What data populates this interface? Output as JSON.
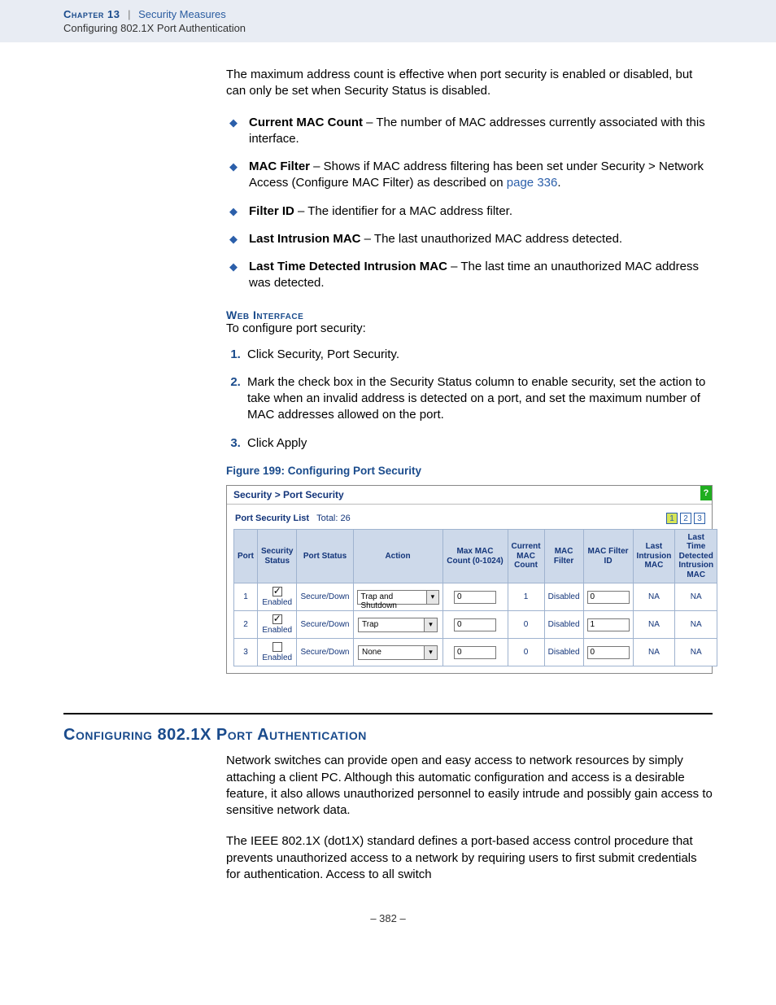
{
  "header": {
    "chapter_label": "Chapter 13",
    "separator": "|",
    "section": "Security Measures",
    "subsection": "Configuring 802.1X Port Authentication"
  },
  "intro_para": "The maximum address count is effective when port security is enabled or disabled, but can only be set when Security Status is disabled.",
  "bullets": [
    {
      "term": "Current MAC Count",
      "desc": " – The number of MAC addresses currently associated with this interface."
    },
    {
      "term": "MAC Filter",
      "desc": " – Shows if MAC address filtering has been set under Security > Network Access (Configure MAC Filter) as described on ",
      "link": "page 336",
      "after": "."
    },
    {
      "term": "Filter ID",
      "desc": " – The identifier for a MAC address filter."
    },
    {
      "term": "Last Intrusion MAC",
      "desc": " – The last unauthorized MAC address detected."
    },
    {
      "term": "Last Time Detected Intrusion MAC",
      "desc": " – The last time an unauthorized MAC address was detected."
    }
  ],
  "web_interface": {
    "heading": "Web Interface",
    "lead": "To configure port security:",
    "steps": [
      "Click Security, Port Security.",
      "Mark the check box in the Security Status column to enable security, set the action to take when an invalid address is detected on a port, and set the maximum number of MAC addresses allowed on the port.",
      "Click Apply"
    ]
  },
  "figure": {
    "caption": "Figure 199:  Configuring Port Security",
    "breadcrumb": "Security > Port Security",
    "list_title": "Port Security List",
    "total_label": "Total: 26",
    "pages": [
      "1",
      "2",
      "3"
    ],
    "active_page": "1",
    "table": {
      "columns": [
        "Port",
        "Security Status",
        "Port Status",
        "Action",
        "Max MAC Count (0-1024)",
        "Current MAC Count",
        "MAC Filter",
        "MAC Filter ID",
        "Last Intrusion MAC",
        "Last Time Detected Intrusion MAC"
      ],
      "header_bg": "#cdd9ea",
      "header_color": "#13357a",
      "border_color": "#9fb3cf",
      "rows": [
        {
          "port": "1",
          "checked": true,
          "status_label": "Enabled",
          "port_status": "Secure/Down",
          "action": "Trap and Shutdown",
          "max_mac": "0",
          "current_mac": "1",
          "mac_filter": "Disabled",
          "filter_id": "0",
          "last_mac": "NA",
          "last_time": "NA"
        },
        {
          "port": "2",
          "checked": true,
          "status_label": "Enabled",
          "port_status": "Secure/Down",
          "action": "Trap",
          "max_mac": "0",
          "current_mac": "0",
          "mac_filter": "Disabled",
          "filter_id": "1",
          "last_mac": "NA",
          "last_time": "NA"
        },
        {
          "port": "3",
          "checked": false,
          "status_label": "Enabled",
          "port_status": "Secure/Down",
          "action": "None",
          "max_mac": "0",
          "current_mac": "0",
          "mac_filter": "Disabled",
          "filter_id": "0",
          "last_mac": "NA",
          "last_time": "NA"
        }
      ]
    }
  },
  "section2": {
    "title": "Configuring 802.1X Port Authentication",
    "p1": "Network switches can provide open and easy access to network resources by simply attaching a client PC. Although this automatic configuration and access is a desirable feature, it also allows unauthorized personnel to easily intrude and possibly gain access to sensitive network data.",
    "p2": "The IEEE 802.1X (dot1X) standard defines a port-based access control procedure that prevents unauthorized access to a network by requiring users to first submit credentials for authentication. Access to all switch"
  },
  "page_number": "–  382  –"
}
